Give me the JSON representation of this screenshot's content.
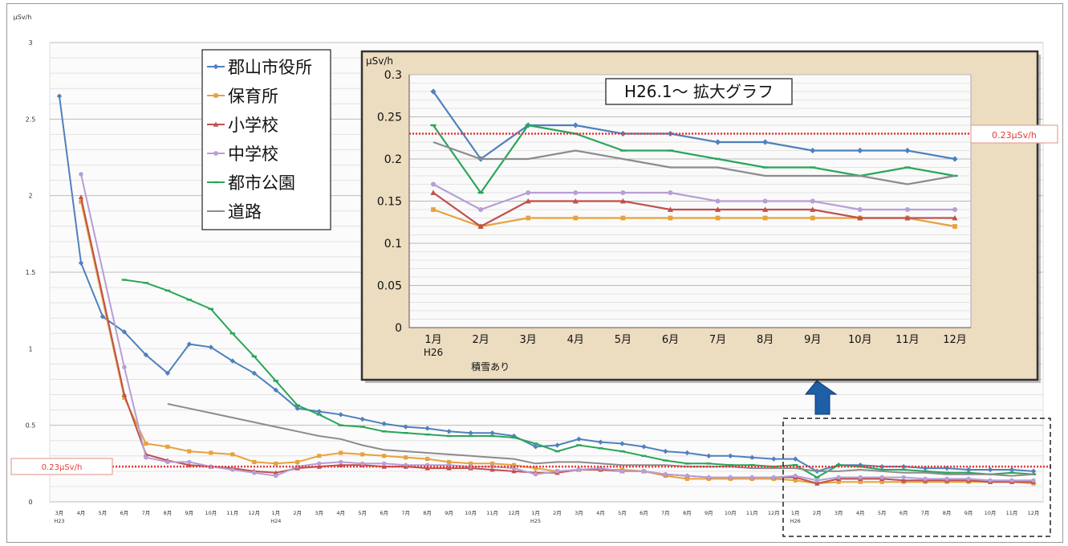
{
  "chart_data": [
    {
      "type": "line",
      "ylabel": "μSv/h",
      "ylim": [
        0,
        3
      ],
      "yticks": [
        "0",
        "0.5",
        "1",
        "1.5",
        "2",
        "2.5",
        "3"
      ],
      "categories": [
        "3月",
        "4月",
        "5月",
        "6月",
        "7月",
        "8月",
        "9月",
        "10月",
        "11月",
        "12月",
        "1月",
        "2月",
        "3月",
        "4月",
        "5月",
        "6月",
        "7月",
        "8月",
        "9月",
        "10月",
        "11月",
        "12月",
        "1月",
        "2月",
        "3月",
        "4月",
        "5月",
        "6月",
        "7月",
        "8月",
        "9月",
        "10月",
        "11月",
        "12月",
        "1月",
        "2月",
        "3月",
        "4月",
        "5月",
        "6月",
        "7月",
        "8月",
        "9月",
        "10月",
        "11月",
        "12月"
      ],
      "year_labels": [
        {
          "index": 0,
          "text": "H23"
        },
        {
          "index": 10,
          "text": "H24"
        },
        {
          "index": 22,
          "text": "H25"
        },
        {
          "index": 34,
          "text": "H26"
        }
      ],
      "reference_line": {
        "value": 0.23,
        "label": "0.23μSv/h",
        "color": "#e03a3a"
      },
      "grid": true,
      "legend_position": "top-left",
      "series": [
        {
          "name": "郡山市役所",
          "color": "#4f81bd",
          "marker": "diamond",
          "values": [
            2.65,
            1.56,
            1.21,
            1.11,
            0.96,
            0.84,
            1.03,
            1.01,
            0.92,
            0.84,
            0.73,
            0.61,
            0.59,
            0.57,
            0.54,
            0.51,
            0.49,
            0.48,
            0.46,
            0.45,
            0.45,
            0.43,
            0.36,
            0.37,
            0.41,
            0.39,
            0.38,
            0.36,
            0.33,
            0.32,
            0.3,
            0.3,
            0.29,
            0.28,
            0.28,
            0.2,
            0.24,
            0.24,
            0.23,
            0.23,
            0.22,
            0.22,
            0.21,
            0.21,
            0.21,
            0.2
          ]
        },
        {
          "name": "保育所",
          "color": "#e6a23c",
          "marker": "square",
          "values": [
            null,
            1.96,
            null,
            0.68,
            0.38,
            0.36,
            0.33,
            0.32,
            0.31,
            0.26,
            0.25,
            0.26,
            0.3,
            0.32,
            0.31,
            0.3,
            0.29,
            0.28,
            0.26,
            0.25,
            0.25,
            0.24,
            0.22,
            0.2,
            0.21,
            0.21,
            0.21,
            0.2,
            0.17,
            0.15,
            0.15,
            0.15,
            0.15,
            0.15,
            0.14,
            0.12,
            0.13,
            0.13,
            0.13,
            0.13,
            0.13,
            0.13,
            0.13,
            0.13,
            0.13,
            0.12
          ]
        },
        {
          "name": "小学校",
          "color": "#c0504d",
          "marker": "triangle",
          "values": [
            null,
            1.99,
            null,
            0.7,
            0.31,
            0.27,
            0.24,
            0.23,
            0.22,
            0.2,
            0.19,
            0.22,
            0.23,
            0.24,
            0.24,
            0.23,
            0.23,
            0.22,
            0.22,
            0.22,
            0.21,
            0.2,
            0.19,
            0.19,
            0.21,
            0.21,
            0.2,
            0.2,
            0.18,
            0.17,
            0.16,
            0.16,
            0.16,
            0.16,
            0.16,
            0.12,
            0.15,
            0.15,
            0.15,
            0.14,
            0.14,
            0.14,
            0.14,
            0.13,
            0.13,
            0.13
          ]
        },
        {
          "name": "中学校",
          "color": "#b79ed6",
          "marker": "circle",
          "values": [
            null,
            2.14,
            null,
            0.88,
            0.29,
            0.26,
            0.26,
            0.23,
            0.21,
            0.19,
            0.17,
            0.23,
            0.25,
            0.26,
            0.25,
            0.25,
            0.24,
            0.24,
            0.24,
            0.23,
            0.23,
            0.22,
            0.18,
            0.2,
            0.21,
            0.22,
            0.2,
            0.2,
            0.18,
            0.17,
            0.16,
            0.16,
            0.16,
            0.16,
            0.17,
            0.14,
            0.16,
            0.16,
            0.16,
            0.16,
            0.15,
            0.15,
            0.15,
            0.14,
            0.14,
            0.14
          ]
        },
        {
          "name": "都市公園",
          "color": "#2aa55a",
          "marker": "dash",
          "values": [
            null,
            null,
            null,
            1.45,
            1.43,
            1.38,
            1.32,
            1.26,
            1.1,
            0.95,
            0.79,
            0.63,
            0.57,
            0.5,
            0.49,
            0.46,
            0.45,
            0.44,
            0.43,
            0.43,
            0.43,
            0.42,
            0.38,
            0.33,
            0.37,
            0.35,
            0.33,
            0.3,
            0.27,
            0.25,
            0.25,
            0.24,
            0.24,
            0.23,
            0.24,
            0.16,
            0.24,
            0.23,
            0.21,
            0.21,
            0.2,
            0.19,
            0.19,
            0.18,
            0.19,
            0.18
          ]
        },
        {
          "name": "道路",
          "color": "#8c8c8c",
          "marker": "none",
          "values": [
            null,
            null,
            null,
            null,
            null,
            0.64,
            0.61,
            0.58,
            0.55,
            0.52,
            0.49,
            0.46,
            0.43,
            0.41,
            0.37,
            0.34,
            0.33,
            0.32,
            0.31,
            0.3,
            0.29,
            0.28,
            0.25,
            0.26,
            0.26,
            0.25,
            0.24,
            0.24,
            0.24,
            0.23,
            0.23,
            0.23,
            0.22,
            0.22,
            0.22,
            0.2,
            0.2,
            0.21,
            0.2,
            0.19,
            0.19,
            0.18,
            0.18,
            0.18,
            0.17,
            0.18
          ]
        }
      ]
    },
    {
      "type": "line",
      "title": "H26.1～ 拡大グラフ",
      "ylabel": "μSv/h",
      "ylim": [
        0,
        0.3
      ],
      "yticks": [
        "0",
        "0.05",
        "0.1",
        "0.15",
        "0.2",
        "0.25",
        "0.3"
      ],
      "categories": [
        "1月",
        "2月",
        "3月",
        "4月",
        "5月",
        "6月",
        "7月",
        "8月",
        "9月",
        "10月",
        "11月",
        "12月"
      ],
      "category_sublabels": [
        {
          "index": 0,
          "text": "H26"
        },
        {
          "index": 1,
          "text": "積雪あり"
        }
      ],
      "reference_line": {
        "value": 0.23,
        "label": "0.23μSv/h",
        "color": "#e03a3a"
      },
      "grid": true,
      "series": [
        {
          "color": "#4f81bd",
          "marker": "diamond",
          "values": [
            0.28,
            0.2,
            0.24,
            0.24,
            0.23,
            0.23,
            0.22,
            0.22,
            0.21,
            0.21,
            0.21,
            0.2
          ]
        },
        {
          "color": "#e6a23c",
          "marker": "square",
          "values": [
            0.14,
            0.12,
            0.13,
            0.13,
            0.13,
            0.13,
            0.13,
            0.13,
            0.13,
            0.13,
            0.13,
            0.12
          ]
        },
        {
          "color": "#c0504d",
          "marker": "triangle",
          "values": [
            0.16,
            0.12,
            0.15,
            0.15,
            0.15,
            0.14,
            0.14,
            0.14,
            0.14,
            0.13,
            0.13,
            0.13
          ]
        },
        {
          "color": "#b79ed6",
          "marker": "circle",
          "values": [
            0.17,
            0.14,
            0.16,
            0.16,
            0.16,
            0.16,
            0.15,
            0.15,
            0.15,
            0.14,
            0.14,
            0.14
          ]
        },
        {
          "color": "#2aa55a",
          "marker": "dash",
          "values": [
            0.24,
            0.16,
            0.24,
            0.23,
            0.21,
            0.21,
            0.2,
            0.19,
            0.19,
            0.18,
            0.19,
            0.18
          ]
        },
        {
          "color": "#8c8c8c",
          "marker": "none",
          "values": [
            0.22,
            0.2,
            0.2,
            0.21,
            0.2,
            0.19,
            0.19,
            0.18,
            0.18,
            0.18,
            0.17,
            0.18
          ]
        }
      ]
    }
  ]
}
